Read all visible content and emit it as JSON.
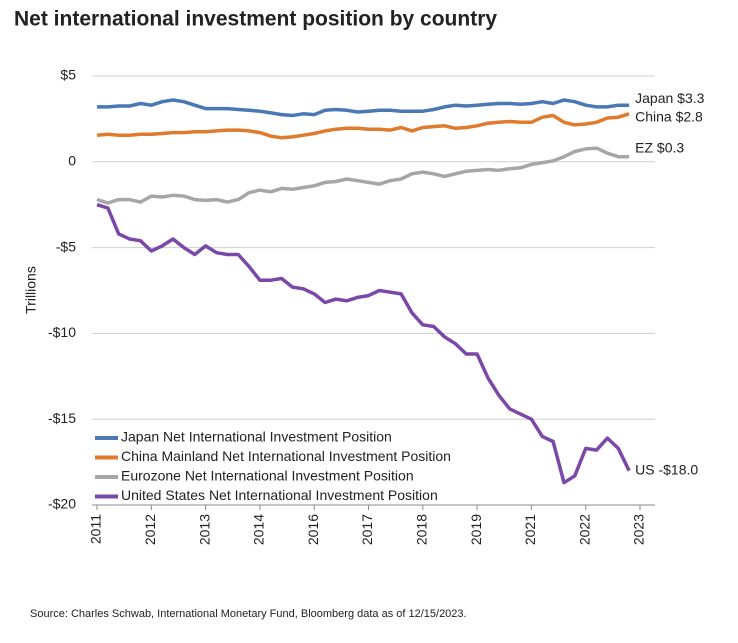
{
  "chart_data": {
    "type": "line",
    "title": "Net international investment position by country",
    "y_label": "Trillions",
    "source": "Source: Charles Schwab, International Monetary Fund, Bloomberg data as of 12/15/2023.",
    "categories": [
      "2011",
      null,
      null,
      null,
      null,
      "2012",
      null,
      null,
      null,
      null,
      "2013",
      null,
      null,
      null,
      null,
      "2014",
      null,
      null,
      null,
      null,
      "2016",
      null,
      null,
      null,
      null,
      "2017",
      null,
      null,
      null,
      null,
      "2018",
      null,
      null,
      null,
      null,
      "2019",
      null,
      null,
      null,
      null,
      "2021",
      null,
      null,
      null,
      null,
      "2022",
      null,
      null,
      null,
      null,
      "2023"
    ],
    "ylim": [
      -20,
      5
    ],
    "yticks": [
      {
        "value": 5,
        "label": "$5"
      },
      0,
      {
        "value": -5,
        "label": "-$5"
      },
      {
        "value": -10,
        "label": "-$10"
      },
      {
        "value": -15,
        "label": "-$15"
      },
      {
        "value": -20,
        "label": "-$20"
      }
    ],
    "grid": true,
    "legend": "lower left",
    "series": [
      {
        "name": "Japan Net International Investment Position",
        "color": "#4a78b5",
        "end_label": "Japan $3.3",
        "values": [
          3.2,
          3.2,
          3.25,
          3.25,
          3.4,
          3.3,
          3.5,
          3.6,
          3.5,
          3.3,
          3.1,
          3.1,
          3.1,
          3.05,
          3.0,
          2.95,
          2.85,
          2.75,
          2.7,
          2.8,
          2.75,
          3.0,
          3.05,
          3.0,
          2.9,
          2.95,
          3.0,
          3.0,
          2.95,
          2.95,
          2.95,
          3.05,
          3.2,
          3.3,
          3.25,
          3.3,
          3.35,
          3.4,
          3.4,
          3.35,
          3.4,
          3.5,
          3.4,
          3.6,
          3.5,
          3.3,
          3.2,
          3.2,
          3.3,
          3.3,
          null
        ]
      },
      {
        "name": "China Mainland Net International Investment Position",
        "color": "#e07a2c",
        "end_label": "China $2.8",
        "values": [
          1.55,
          1.6,
          1.55,
          1.55,
          1.6,
          1.6,
          1.65,
          1.7,
          1.7,
          1.75,
          1.75,
          1.8,
          1.85,
          1.85,
          1.8,
          1.7,
          1.5,
          1.4,
          1.45,
          1.55,
          1.65,
          1.8,
          1.9,
          1.95,
          1.95,
          1.9,
          1.9,
          1.85,
          2.0,
          1.8,
          2.0,
          2.05,
          2.1,
          1.95,
          2.0,
          2.1,
          2.25,
          2.3,
          2.35,
          2.3,
          2.3,
          2.6,
          2.7,
          2.3,
          2.15,
          2.2,
          2.3,
          2.55,
          2.6,
          2.8,
          null
        ]
      },
      {
        "name": "Eurozone Net International Investment Position",
        "color": "#a6a6a6",
        "end_label": "EZ $0.3",
        "values": [
          -2.2,
          -2.4,
          -2.2,
          -2.2,
          -2.35,
          -2.0,
          -2.05,
          -1.95,
          -2.0,
          -2.2,
          -2.25,
          -2.2,
          -2.35,
          -2.2,
          -1.8,
          -1.65,
          -1.75,
          -1.55,
          -1.6,
          -1.5,
          -1.4,
          -1.2,
          -1.15,
          -1.0,
          -1.1,
          -1.2,
          -1.3,
          -1.1,
          -1.0,
          -0.7,
          -0.6,
          -0.7,
          -0.85,
          -0.7,
          -0.55,
          -0.5,
          -0.45,
          -0.5,
          -0.4,
          -0.35,
          -0.15,
          -0.05,
          0.05,
          0.3,
          0.6,
          0.75,
          0.8,
          0.5,
          0.3,
          0.3,
          null
        ]
      },
      {
        "name": "United States Net International Investment Position",
        "color": "#7a48a8",
        "end_label": "US -$18.0",
        "values": [
          -2.5,
          -2.7,
          -4.2,
          -4.5,
          -4.6,
          -5.2,
          -4.9,
          -4.5,
          -5.0,
          -5.4,
          -4.9,
          -5.3,
          -5.4,
          -5.4,
          -6.1,
          -6.9,
          -6.9,
          -6.8,
          -7.3,
          -7.4,
          -7.7,
          -8.2,
          -8.0,
          -8.1,
          -7.9,
          -7.8,
          -7.5,
          -7.6,
          -7.7,
          -8.8,
          -9.5,
          -9.6,
          -10.2,
          -10.6,
          -11.2,
          -11.2,
          -12.6,
          -13.6,
          -14.4,
          -14.7,
          -15.0,
          -16.0,
          -16.3,
          -18.7,
          -18.3,
          -16.7,
          -16.8,
          -16.1,
          -16.7,
          -18.0,
          null
        ]
      }
    ]
  }
}
